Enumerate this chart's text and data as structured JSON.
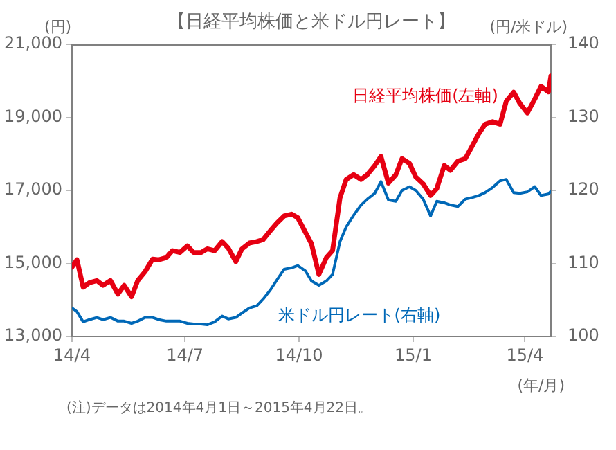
{
  "chart_data": {
    "type": "line",
    "title": "【日経平均株価と米ドル円レート】",
    "ylabel": "(円)",
    "y2label": "(円/米ドル)",
    "xlabel": "(年/月)",
    "annotations": [
      "(注)データは2014年4月1日～2015年4月22日。"
    ],
    "x": [
      "2014-04-01",
      "2014-04-05",
      "2014-04-10",
      "2014-04-15",
      "2014-04-21",
      "2014-04-26",
      "2014-05-02",
      "2014-05-08",
      "2014-05-13",
      "2014-05-19",
      "2014-05-24",
      "2014-05-30",
      "2014-06-05",
      "2014-06-10",
      "2014-06-16",
      "2014-06-21",
      "2014-06-27",
      "2014-07-03",
      "2014-07-08",
      "2014-07-14",
      "2014-07-19",
      "2014-07-25",
      "2014-07-31",
      "2014-08-05",
      "2014-08-11",
      "2014-08-16",
      "2014-08-22",
      "2014-08-28",
      "2014-09-02",
      "2014-09-08",
      "2014-09-13",
      "2014-09-19",
      "2014-09-25",
      "2014-09-30",
      "2014-10-06",
      "2014-10-11",
      "2014-10-17",
      "2014-10-23",
      "2014-10-28",
      "2014-11-03",
      "2014-11-08",
      "2014-11-14",
      "2014-11-20",
      "2014-11-25",
      "2014-12-01",
      "2014-12-06",
      "2014-12-12",
      "2014-12-18",
      "2014-12-23",
      "2014-12-29",
      "2015-01-03",
      "2015-01-09",
      "2015-01-15",
      "2015-01-20",
      "2015-01-26",
      "2015-01-31",
      "2015-02-06",
      "2015-02-12",
      "2015-02-17",
      "2015-02-23",
      "2015-02-28",
      "2015-03-06",
      "2015-03-12",
      "2015-03-17",
      "2015-03-23",
      "2015-03-28",
      "2015-04-03",
      "2015-04-09",
      "2015-04-14",
      "2015-04-20",
      "2015-04-22"
    ],
    "xlim": [
      "2014-04-01",
      "2015-04-22"
    ],
    "xticks": [
      {
        "value": "2014-04-01",
        "label": "14/4"
      },
      {
        "value": "2014-07-01",
        "label": "14/7"
      },
      {
        "value": "2014-10-01",
        "label": "14/10"
      },
      {
        "value": "2015-01-01",
        "label": "15/1"
      },
      {
        "value": "2015-04-01",
        "label": "15/4"
      }
    ],
    "ylim": [
      13000,
      21000
    ],
    "yticks": [
      {
        "value": 13000,
        "label": "13,000"
      },
      {
        "value": 15000,
        "label": "15,000"
      },
      {
        "value": 17000,
        "label": "17,000"
      },
      {
        "value": 19000,
        "label": "19,000"
      },
      {
        "value": 21000,
        "label": "21,000"
      }
    ],
    "y2lim": [
      100,
      140
    ],
    "y2ticks": [
      100,
      110,
      120,
      130,
      140
    ],
    "grid": false,
    "legend": false,
    "marker": "none",
    "line_style": "solid",
    "series": [
      {
        "name": "日経平均株価(左軸)",
        "color": "#e60012",
        "values": [
          14900,
          15100,
          14350,
          14470,
          14530,
          14400,
          14530,
          14160,
          14400,
          14090,
          14530,
          14780,
          15120,
          15100,
          15160,
          15350,
          15300,
          15480,
          15300,
          15300,
          15400,
          15350,
          15600,
          15420,
          15050,
          15400,
          15560,
          15600,
          15650,
          15900,
          16100,
          16300,
          16350,
          16250,
          15860,
          15540,
          14700,
          15160,
          15350,
          16800,
          17300,
          17430,
          17300,
          17430,
          17680,
          17930,
          17200,
          17430,
          17870,
          17740,
          17370,
          17180,
          16860,
          17050,
          17680,
          17550,
          17800,
          17870,
          18180,
          18560,
          18810,
          18880,
          18810,
          19440,
          19690,
          19380,
          19120,
          19500,
          19850,
          19700,
          20130
        ]
      },
      {
        "name": "米ドル円レート(右軸)",
        "color": "#0068b7",
        "axis": "y2",
        "values": [
          103.9,
          103.4,
          102.0,
          102.3,
          102.6,
          102.3,
          102.6,
          102.1,
          102.1,
          101.8,
          102.1,
          102.6,
          102.6,
          102.3,
          102.1,
          102.1,
          102.1,
          101.8,
          101.7,
          101.7,
          101.6,
          102.0,
          102.8,
          102.4,
          102.6,
          103.2,
          103.9,
          104.2,
          105.1,
          106.4,
          107.7,
          109.2,
          109.4,
          109.7,
          109.0,
          107.6,
          107.0,
          107.6,
          108.5,
          113.0,
          115.0,
          116.6,
          118.0,
          118.8,
          119.6,
          121.2,
          118.7,
          118.5,
          120.0,
          120.5,
          120.0,
          118.8,
          116.5,
          118.5,
          118.3,
          118.0,
          117.8,
          118.8,
          119.0,
          119.3,
          119.7,
          120.4,
          121.3,
          121.5,
          119.7,
          119.6,
          119.8,
          120.5,
          119.3,
          119.5,
          119.9
        ]
      }
    ]
  }
}
